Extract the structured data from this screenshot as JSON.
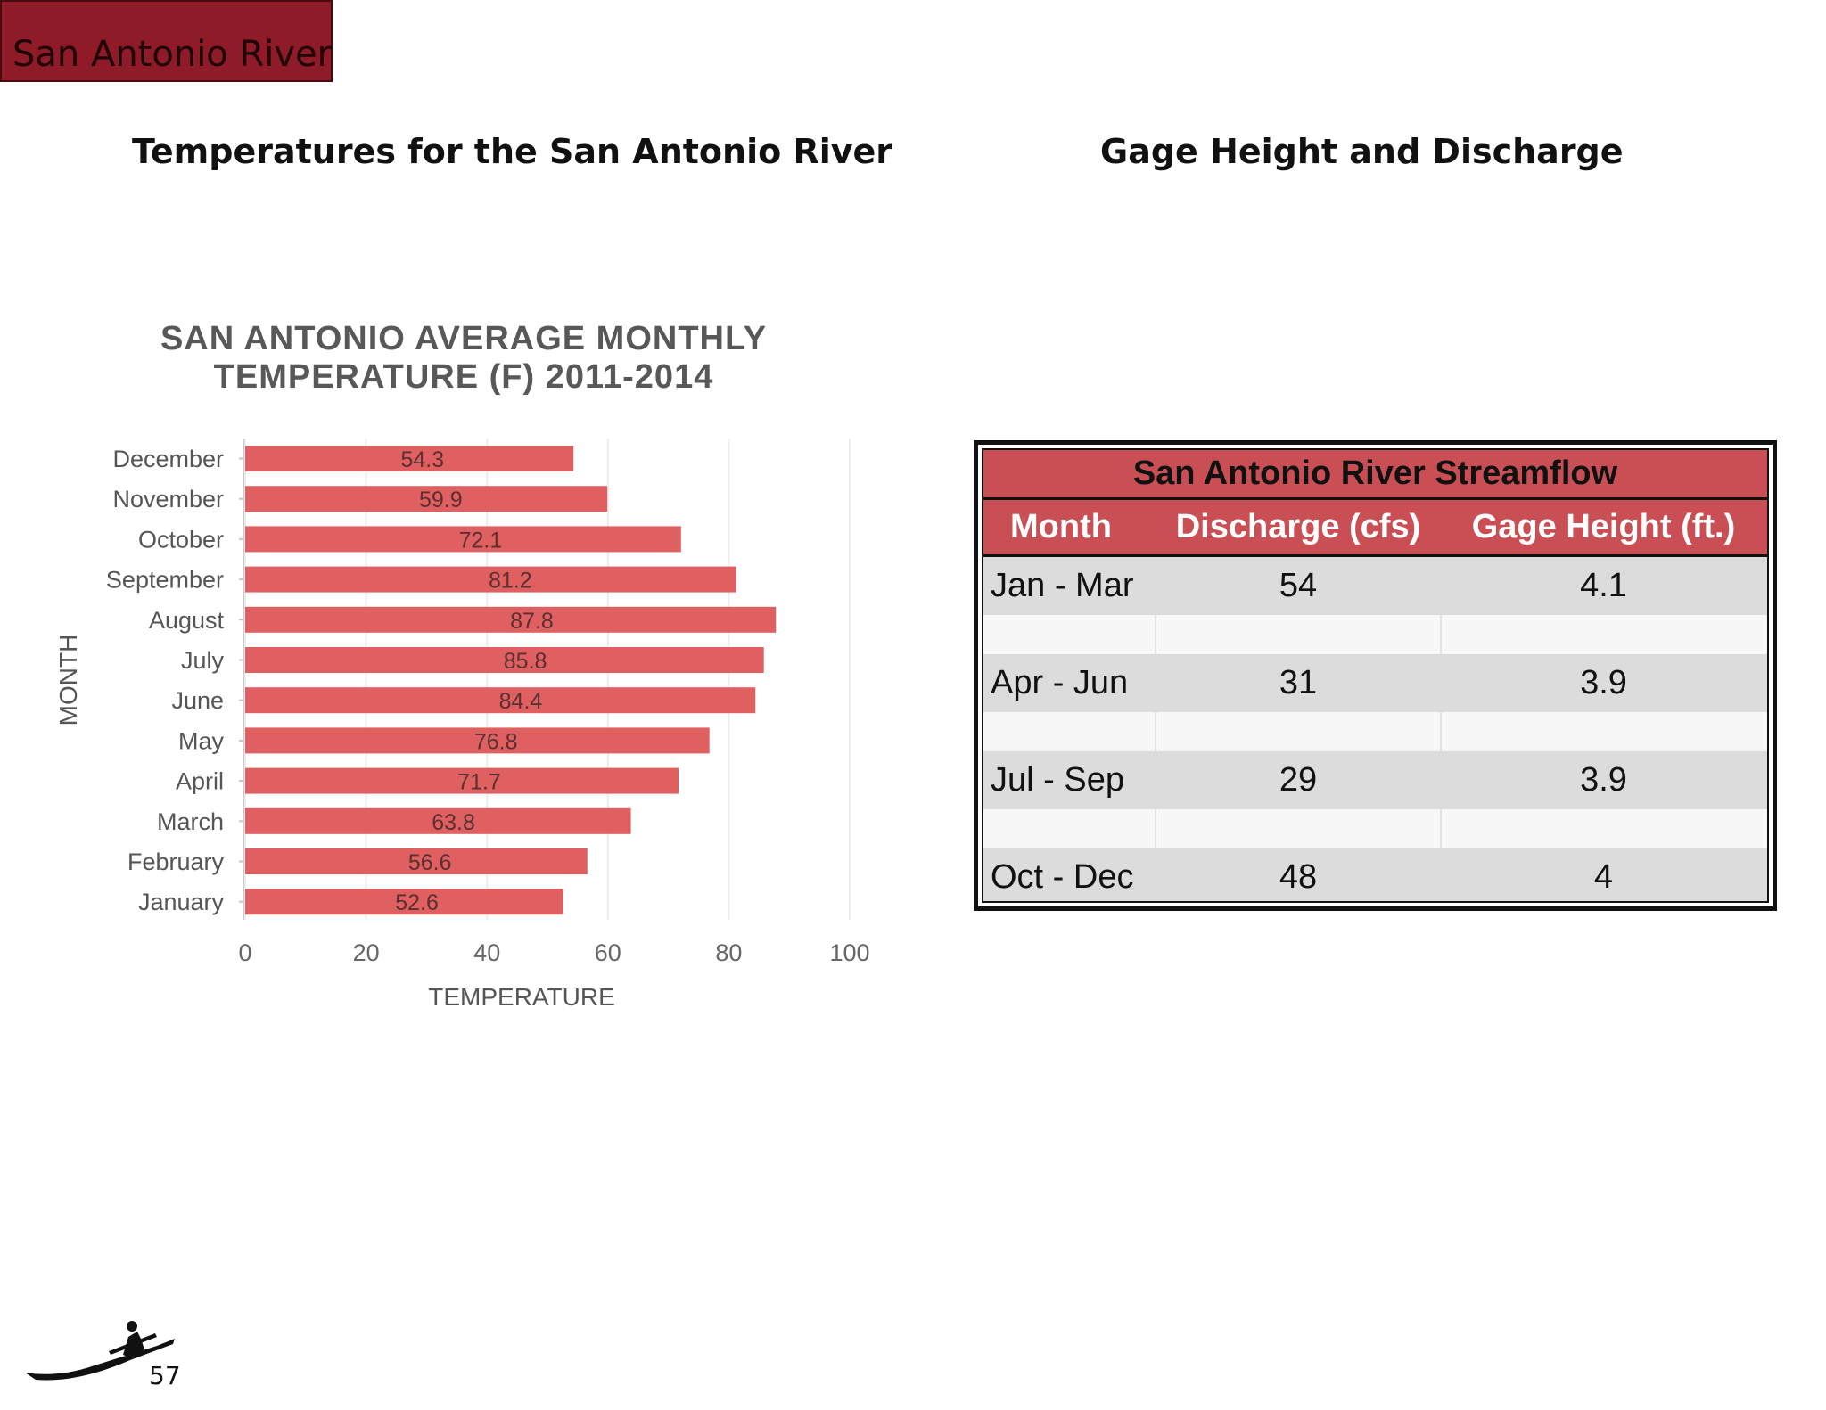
{
  "header": {
    "section_tab": "San Antonio River"
  },
  "left_section": {
    "heading": "Temperatures for the San Antonio River"
  },
  "right_section": {
    "heading": "Gage Height and Discharge"
  },
  "chart_data": {
    "type": "bar",
    "orientation": "horizontal",
    "title_lines": [
      "SAN ANTONIO AVERAGE MONTHLY",
      "TEMPERATURE (F) 2011-2014"
    ],
    "xlabel": "TEMPERATURE",
    "ylabel": "MONTH",
    "categories": [
      "December",
      "November",
      "October",
      "September",
      "August",
      "July",
      "June",
      "May",
      "April",
      "March",
      "February",
      "January"
    ],
    "values": [
      54.3,
      59.9,
      72.1,
      81.2,
      87.8,
      85.8,
      84.4,
      76.8,
      71.7,
      63.8,
      56.6,
      52.6
    ],
    "value_labels": [
      "54.3",
      "59.9",
      "72.1",
      "81.2",
      "87.8",
      "85.8",
      "84.4",
      "76.8",
      "71.7",
      "63.8",
      "56.6",
      "52.6"
    ],
    "xlim": [
      0,
      100
    ],
    "x_ticks": [
      "0",
      "20",
      "40",
      "60",
      "80",
      "100"
    ],
    "grid": true,
    "bar_color": "#e06061"
  },
  "streamflow_table": {
    "title": "San Antonio River Streamflow",
    "headers": [
      "Month",
      "Discharge (cfs)",
      "Gage Height (ft.)"
    ],
    "rows": [
      [
        "Jan - Mar",
        "54",
        "4.1"
      ],
      [
        "Apr - Jun",
        "31",
        "3.9"
      ],
      [
        "Jul - Sep",
        "29",
        "3.9"
      ],
      [
        "Oct - Dec",
        "48",
        "4"
      ]
    ],
    "header_color": "#c94f55"
  },
  "footer": {
    "page_number": "57",
    "logo_icon": "kayaker-icon"
  }
}
